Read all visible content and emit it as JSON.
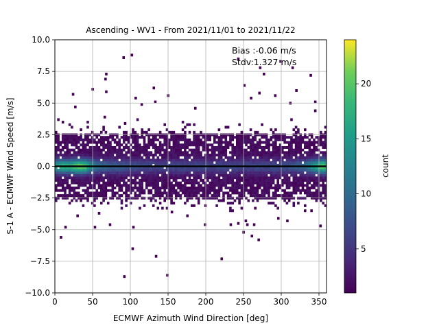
{
  "chart_data": {
    "type": "heatmap",
    "title": "Ascending - WV1 - From 2021/11/01 to 2021/11/22",
    "xlabel": "ECMWF Azimuth Wind Direction [deg]",
    "ylabel": "S-1 A - ECMWF Wind Speed [m/s]",
    "xlim": [
      0,
      360
    ],
    "ylim": [
      -10,
      10
    ],
    "x_ticks": [
      0,
      50,
      100,
      150,
      200,
      250,
      300,
      350
    ],
    "x_tick_labels": [
      "0",
      "50",
      "100",
      "150",
      "200",
      "250",
      "300",
      "350"
    ],
    "y_ticks": [
      -10,
      -7.5,
      -5,
      -2.5,
      0,
      2.5,
      5,
      7.5,
      10
    ],
    "y_tick_labels": [
      "−10.0",
      "−7.5",
      "−5.0",
      "−2.5",
      "0.0",
      "2.5",
      "5.0",
      "7.5",
      "10.0"
    ],
    "grid": true,
    "bin_width_deg": 3,
    "bin_height_ms": 0.2,
    "reference_line_y": 0,
    "annotation": {
      "bias_text": "Bias :-0.06 m/s",
      "stdv_text": "Stdv:1.327 m/s"
    },
    "colorbar": {
      "label": "count",
      "colormap": "viridis",
      "range": [
        1,
        24
      ],
      "ticks": [
        5,
        10,
        15,
        20
      ],
      "tick_labels": [
        "5",
        "10",
        "15",
        "20"
      ]
    },
    "density_model": {
      "core_halfwidth_ms": 2.6,
      "center_counts": [
        [
          0,
          14
        ],
        [
          10,
          17
        ],
        [
          20,
          16
        ],
        [
          30,
          20
        ],
        [
          40,
          19
        ],
        [
          50,
          12
        ],
        [
          60,
          9
        ],
        [
          80,
          8
        ],
        [
          100,
          7
        ],
        [
          130,
          6
        ],
        [
          160,
          6
        ],
        [
          190,
          6
        ],
        [
          220,
          6
        ],
        [
          250,
          6
        ],
        [
          280,
          6
        ],
        [
          310,
          7
        ],
        [
          330,
          9
        ],
        [
          345,
          15
        ],
        [
          355,
          20
        ],
        [
          360,
          17
        ]
      ]
    },
    "outlier_points": [
      [
        91,
        8.6
      ],
      [
        102,
        8.8
      ],
      [
        68,
        7.3
      ],
      [
        67,
        6.9
      ],
      [
        150,
        5.6
      ],
      [
        66,
        3.9
      ],
      [
        93,
        3.4
      ],
      [
        243,
        8.5
      ],
      [
        251,
        6.4
      ],
      [
        272,
        7.8
      ],
      [
        277,
        7.3
      ],
      [
        299,
        8.3
      ],
      [
        315,
        7.8
      ],
      [
        339,
        7.2
      ],
      [
        320,
        6.0
      ],
      [
        24,
        5.7
      ],
      [
        68,
        5.9
      ],
      [
        107,
        5.4
      ],
      [
        131,
        6.2
      ],
      [
        133,
        5.1
      ],
      [
        271,
        5.8
      ],
      [
        312,
        5.0
      ],
      [
        345,
        5.1
      ],
      [
        260,
        5.4
      ],
      [
        292,
        5.6
      ],
      [
        345,
        4.4
      ],
      [
        50,
        6.1
      ],
      [
        27,
        4.7
      ],
      [
        115,
        4.9
      ],
      [
        186,
        4.6
      ],
      [
        14,
        -4.8
      ],
      [
        8,
        -5.6
      ],
      [
        53,
        -4.8
      ],
      [
        73,
        -4.6
      ],
      [
        104,
        -4.8
      ],
      [
        199,
        -4.6
      ],
      [
        233,
        -4.6
      ],
      [
        243,
        -4.5
      ],
      [
        253,
        -4.3
      ],
      [
        255,
        -4.6
      ],
      [
        264,
        -4.6
      ],
      [
        296,
        -4.1
      ],
      [
        340,
        -3.5
      ],
      [
        352,
        -4.7
      ],
      [
        103,
        -6.5
      ],
      [
        134,
        -7.1
      ],
      [
        149,
        -8.6
      ],
      [
        92,
        -8.7
      ],
      [
        221,
        -7.3
      ],
      [
        261,
        -5.5
      ],
      [
        270,
        -5.8
      ],
      [
        250,
        -5.2
      ],
      [
        308,
        -4.3
      ],
      [
        155,
        -3.6
      ],
      [
        30,
        -3.9
      ]
    ]
  }
}
